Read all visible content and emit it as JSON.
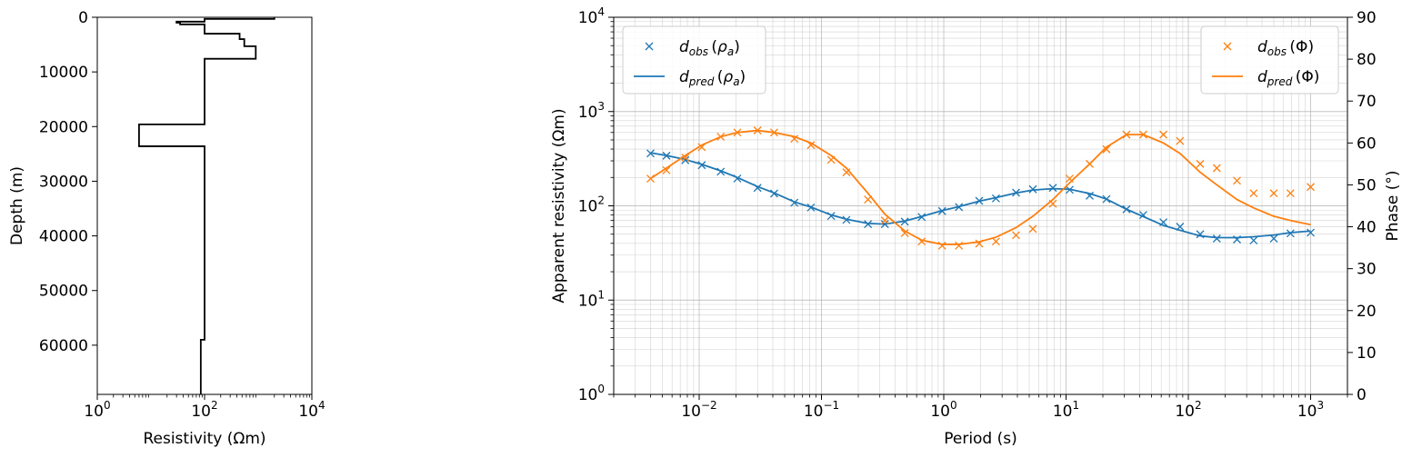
{
  "figure": {
    "background": "#ffffff",
    "model_color": "#000000",
    "rho_color": "#1f77b4",
    "phase_color": "#ff7f0e",
    "grid_color": "#b0b0b0"
  },
  "chart_data": [
    {
      "id": "resistivity_model",
      "type": "line",
      "subtype": "step",
      "xscale": "log",
      "xlim": [
        1,
        10000
      ],
      "ylim": [
        69000,
        0
      ],
      "yinverted": true,
      "xlabel": "Resistivity (Ωm)",
      "ylabel": "Depth (m)",
      "xticks": [
        {
          "value": 1,
          "base": "10",
          "exp": "0"
        },
        {
          "value": 100,
          "base": "10",
          "exp": "2"
        },
        {
          "value": 10000,
          "base": "10",
          "exp": "4"
        }
      ],
      "yticks": [
        {
          "value": 0,
          "label": "0"
        },
        {
          "value": 10000,
          "label": "10000"
        },
        {
          "value": 20000,
          "label": "20000"
        },
        {
          "value": 30000,
          "label": "30000"
        },
        {
          "value": 40000,
          "label": "40000"
        },
        {
          "value": 50000,
          "label": "50000"
        },
        {
          "value": 60000,
          "label": "60000"
        }
      ],
      "grid": false,
      "steps": [
        {
          "res": 2000,
          "top": 0,
          "bottom": 300
        },
        {
          "res": 100,
          "top": 300,
          "bottom": 800
        },
        {
          "res": 30,
          "top": 800,
          "bottom": 1000
        },
        {
          "res": 35,
          "top": 1000,
          "bottom": 1300
        },
        {
          "res": 100,
          "top": 1300,
          "bottom": 3000
        },
        {
          "res": 450,
          "top": 3000,
          "bottom": 4000
        },
        {
          "res": 550,
          "top": 4000,
          "bottom": 5300
        },
        {
          "res": 900,
          "top": 5300,
          "bottom": 7600
        },
        {
          "res": 100,
          "top": 7600,
          "bottom": 19600
        },
        {
          "res": 6,
          "top": 19600,
          "bottom": 23600
        },
        {
          "res": 100,
          "top": 23600,
          "bottom": 59000
        },
        {
          "res": 85,
          "top": 59000,
          "bottom": 69000
        }
      ]
    },
    {
      "id": "mt_response",
      "type": "line",
      "xscale": "log",
      "xlim": [
        0.002,
        2000
      ],
      "xlabel": "Period (s)",
      "xticks": [
        {
          "value": 0.01,
          "base": "10",
          "exp": "−2"
        },
        {
          "value": 0.1,
          "base": "10",
          "exp": "−1"
        },
        {
          "value": 1,
          "base": "10",
          "exp": "0"
        },
        {
          "value": 10,
          "base": "10",
          "exp": "1"
        },
        {
          "value": 100,
          "base": "10",
          "exp": "2"
        },
        {
          "value": 1000,
          "base": "10",
          "exp": "3"
        }
      ],
      "grid": true,
      "left_axis": {
        "label": "Apparent resistivity (Ωm)",
        "scale": "log",
        "lim": [
          1,
          10000
        ],
        "ticks": [
          {
            "value": 1,
            "base": "10",
            "exp": "0"
          },
          {
            "value": 10,
            "base": "10",
            "exp": "1"
          },
          {
            "value": 100,
            "base": "10",
            "exp": "2"
          },
          {
            "value": 1000,
            "base": "10",
            "exp": "3"
          },
          {
            "value": 10000,
            "base": "10",
            "exp": "4"
          }
        ]
      },
      "right_axis": {
        "label": "Phase (°)",
        "scale": "linear",
        "lim": [
          0,
          90
        ],
        "ticks": [
          "0",
          "10",
          "20",
          "30",
          "40",
          "50",
          "60",
          "70",
          "80",
          "90"
        ]
      },
      "period": [
        0.004,
        0.0054,
        0.0077,
        0.0105,
        0.015,
        0.0205,
        0.03,
        0.041,
        0.06,
        0.082,
        0.12,
        0.16,
        0.24,
        0.33,
        0.48,
        0.66,
        0.97,
        1.33,
        1.95,
        2.67,
        3.9,
        5.35,
        7.8,
        10.7,
        15.6,
        21.4,
        31.2,
        42.8,
        62.5,
        85.5,
        125,
        171,
        250,
        342,
        500,
        684,
        1000
      ],
      "series": [
        {
          "key": "rho_obs",
          "axis": "left",
          "marker": "x",
          "color": "#1f77b4",
          "values": [
            360,
            340,
            305,
            270,
            230,
            195,
            155,
            135,
            108,
            96,
            78,
            71,
            64,
            64,
            68,
            76,
            88,
            97,
            113,
            120,
            138,
            150,
            155,
            148,
            128,
            118,
            92,
            80,
            67,
            60,
            50,
            45,
            44,
            43,
            45,
            51,
            52
          ]
        },
        {
          "key": "rho_pred",
          "axis": "left",
          "line": "solid",
          "color": "#1f77b4",
          "values": [
            365,
            342,
            310,
            275,
            235,
            200,
            160,
            137,
            110,
            97,
            80,
            72,
            65,
            64,
            69,
            77,
            89,
            98,
            112,
            122,
            137,
            147,
            152,
            150,
            135,
            118,
            92,
            77,
            62,
            55,
            48,
            46,
            46,
            47,
            49,
            52,
            54
          ]
        },
        {
          "key": "phase_obs",
          "axis": "right",
          "marker": "x",
          "color": "#ff7f0e",
          "values": [
            51.5,
            53.5,
            56.5,
            59,
            61.5,
            62.5,
            63,
            62.5,
            61,
            59.5,
            56,
            53,
            46.5,
            41.5,
            38.5,
            36.5,
            35.5,
            35.5,
            36,
            36.5,
            38,
            39.5,
            45.5,
            51.5,
            55,
            58.5,
            62,
            62,
            62,
            60.5,
            55,
            54,
            51,
            48,
            48,
            48,
            49.5
          ]
        },
        {
          "key": "phase_pred",
          "axis": "right",
          "line": "solid",
          "color": "#ff7f0e",
          "values": [
            51.5,
            54,
            57,
            59.5,
            61.5,
            62.5,
            63,
            62.5,
            61.5,
            60,
            57,
            54,
            48,
            43,
            39,
            36.8,
            35.8,
            35.8,
            36.4,
            37.5,
            39.8,
            42.5,
            46.5,
            50.5,
            55,
            59,
            62,
            62,
            60,
            57.5,
            53,
            50,
            46.5,
            44.5,
            42.5,
            41.5,
            40.5
          ]
        }
      ],
      "legend_left": {
        "placement": "upper-left",
        "entries": [
          {
            "key": "rho_obs",
            "main": "d",
            "sub": "obs",
            "paren": "ρ",
            "paren_sub": "a"
          },
          {
            "key": "rho_pred",
            "main": "d",
            "sub": "pred",
            "paren": "ρ",
            "paren_sub": "a"
          }
        ]
      },
      "legend_right": {
        "placement": "upper-right",
        "entries": [
          {
            "key": "phase_obs",
            "main": "d",
            "sub": "obs",
            "paren": "Φ",
            "paren_sub": ""
          },
          {
            "key": "phase_pred",
            "main": "d",
            "sub": "pred",
            "paren": "Φ",
            "paren_sub": ""
          }
        ]
      }
    }
  ]
}
